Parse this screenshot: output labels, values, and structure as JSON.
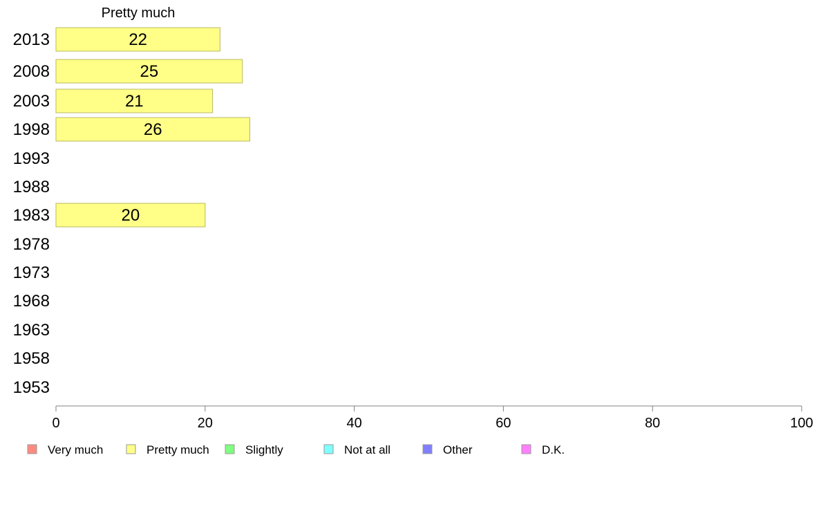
{
  "chart_data": {
    "type": "bar",
    "orientation": "horizontal",
    "title": "Pretty much",
    "categories": [
      "2013",
      "2008",
      "2003",
      "1998",
      "1993",
      "1988",
      "1983",
      "1978",
      "1973",
      "1968",
      "1963",
      "1958",
      "1953"
    ],
    "series": [
      {
        "name": "Pretty much",
        "color": "#ffff88",
        "values": [
          22,
          25,
          21,
          26,
          null,
          null,
          20,
          null,
          null,
          null,
          null,
          null,
          null
        ]
      }
    ],
    "xlim": [
      0,
      100
    ],
    "xticks": [
      "0",
      "20",
      "40",
      "60",
      "80",
      "100"
    ],
    "grid": false,
    "legend": {
      "placement": "bottom",
      "items": [
        {
          "label": "Very much",
          "color": "#ff8a80"
        },
        {
          "label": "Pretty much",
          "color": "#ffff88"
        },
        {
          "label": "Slightly",
          "color": "#80ff80"
        },
        {
          "label": "Not at all",
          "color": "#80ffff"
        },
        {
          "label": "Other",
          "color": "#8080ff"
        },
        {
          "label": "D.K.",
          "color": "#ff80ff"
        }
      ]
    }
  }
}
